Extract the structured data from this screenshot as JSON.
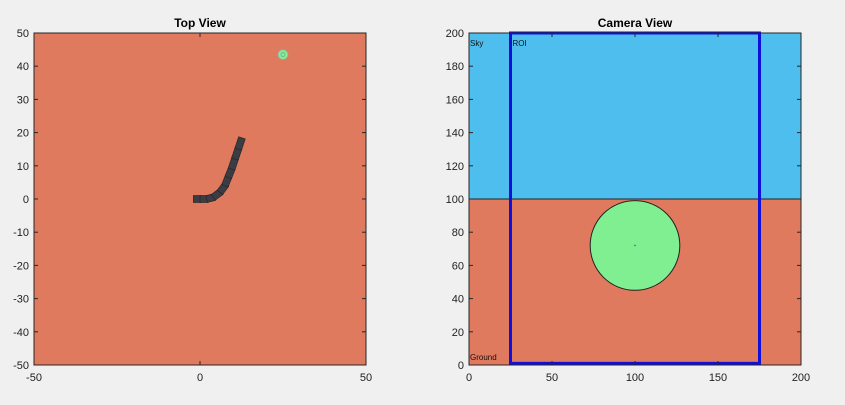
{
  "figure": {
    "background": "#f0f0f0"
  },
  "chart_data": [
    {
      "type": "scatter",
      "title": "Top View",
      "xlim": [
        -50,
        50
      ],
      "ylim": [
        -50,
        50
      ],
      "xticks": [
        -50,
        0,
        50
      ],
      "yticks": [
        -50,
        -40,
        -30,
        -20,
        -10,
        0,
        10,
        20,
        30,
        40,
        50
      ],
      "grid": false,
      "ground_color": "#e07a5f",
      "target": {
        "x": 25,
        "y": 43.5,
        "color": "#80ef91"
      },
      "path": [
        [
          -2,
          0
        ],
        [
          0,
          0
        ],
        [
          2,
          0
        ],
        [
          4,
          0.5
        ],
        [
          6,
          2
        ],
        [
          7.5,
          4
        ],
        [
          8.5,
          6.5
        ],
        [
          9.5,
          9
        ],
        [
          10.5,
          12
        ],
        [
          11.5,
          15
        ],
        [
          12.5,
          18
        ]
      ],
      "path_color": "#3c3c44"
    },
    {
      "type": "scatter",
      "title": "Camera View",
      "xlim": [
        0,
        200
      ],
      "ylim": [
        0,
        200
      ],
      "xticks": [
        0,
        50,
        100,
        150,
        200
      ],
      "yticks": [
        0,
        20,
        40,
        60,
        80,
        100,
        120,
        140,
        160,
        180,
        200
      ],
      "grid": false,
      "regions": [
        {
          "label": "Sky",
          "y_range": [
            100,
            200
          ],
          "color": "#4dbeee"
        },
        {
          "label": "Ground",
          "y_range": [
            0,
            100
          ],
          "color": "#e07a5f"
        }
      ],
      "horizon_y": 100,
      "target": {
        "x": 100,
        "y": 72,
        "r": 27,
        "color": "#80ef91"
      },
      "roi": {
        "label": "ROI",
        "x_range": [
          25,
          175
        ],
        "y_range": [
          1,
          200
        ],
        "color": "#1010dd"
      }
    }
  ]
}
